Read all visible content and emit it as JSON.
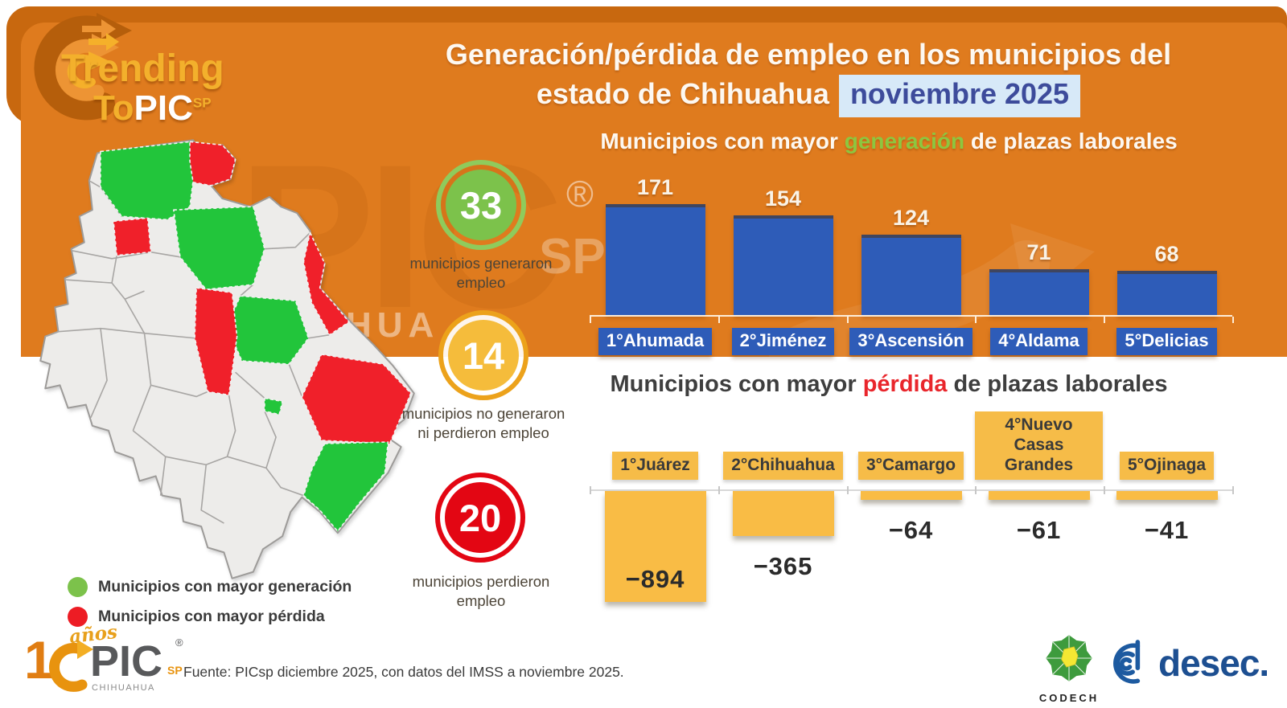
{
  "colors": {
    "header_orange": "#DF7B1E",
    "header_dark_orange": "#C8680F",
    "bar_blue": "#2E5CB8",
    "bar_yellow": "#F9BC45",
    "title_keyword_green": "#8DC63F",
    "title_keyword_red": "#E9262C",
    "map_green": "#22C53B",
    "map_red": "#F0202A",
    "highlight_bg": "#D7E9F8",
    "highlight_text": "#3D4B9B"
  },
  "header": {
    "logo": {
      "trending": "Trending",
      "to": "To",
      "pic": "PIC",
      "sp": "SP"
    },
    "title_line1": "Generación/pérdida de empleo en los municipios del",
    "title_line2": "estado de Chihuahua",
    "highlight": "noviembre 2025",
    "watermark": {
      "pic": "PIC",
      "sp": "SP",
      "registered": "®",
      "hua": "HUA"
    }
  },
  "badges": [
    {
      "value": "33",
      "caption": "municipios generaron empleo",
      "fill": "#7CC24B",
      "ring": "#8FCB5C"
    },
    {
      "value": "14",
      "caption": "municipios no generaron ni perdieron empleo",
      "fill": "#F5BC3B",
      "ring": "#ECA21B"
    },
    {
      "value": "20",
      "caption": "municipios perdieron empleo",
      "fill": "#E30613",
      "ring": "#E30613"
    }
  ],
  "charts": {
    "generation": {
      "prefix": "Municipios con mayor ",
      "keyword": "generación",
      "suffix": " de plazas laborales"
    },
    "loss": {
      "prefix": "Municipios con mayor ",
      "keyword": "pérdida",
      "suffix": " de plazas laborales"
    }
  },
  "chart_data": [
    {
      "type": "bar",
      "title": "Municipios con mayor generación de plazas laborales",
      "categories": [
        "1°Ahumada",
        "2°Jiménez",
        "3°Ascensión",
        "4°Aldama",
        "5°Delicias"
      ],
      "values": [
        171,
        154,
        124,
        71,
        68
      ],
      "ylim": [
        0,
        180
      ],
      "bar_color": "#2E5CB8",
      "value_label_color": "#FAF3E7",
      "category_style": "white-on-blue",
      "legend_position": "none",
      "grid": false
    },
    {
      "type": "bar",
      "title": "Municipios con mayor pérdida de plazas laborales",
      "categories": [
        "1°Juárez",
        "2°Chihuahua",
        "3°Camargo",
        "4°Nuevo Casas Grandes",
        "5°Ojinaga"
      ],
      "values": [
        -894,
        -365,
        -64,
        -61,
        -41
      ],
      "ylim": [
        -950,
        0
      ],
      "bar_color": "#F9BC45",
      "value_label_color": "#2B2B2B",
      "category_style": "dark-on-yellow",
      "legend_position": "none",
      "grid": false
    }
  ],
  "legend": [
    {
      "label": "Municipios con mayor generación",
      "color": "#7CC24B"
    },
    {
      "label": "Municipios con mayor pérdida",
      "color": "#ED1C24"
    }
  ],
  "footer": {
    "fuente": "Fuente: PICsp diciembre 2025, con datos del IMSS a noviembre 2025.",
    "pic_logo": {
      "one": "1",
      "anos": "años",
      "pic": "PIC",
      "sp": "SP",
      "registered": "®",
      "state": "CHIHUAHUA"
    },
    "codech": "CODECH",
    "desec": "desec."
  }
}
